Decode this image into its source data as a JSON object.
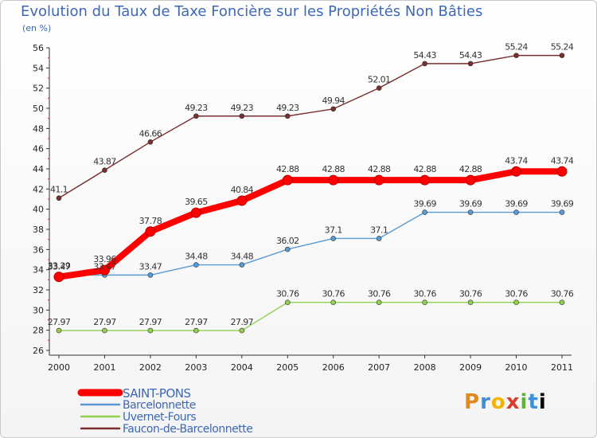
{
  "chart_data": {
    "type": "line",
    "title": "Evolution du Taux de Taxe Foncière sur les Propriétés Non Bâties",
    "ylabel": "(en %)",
    "xlabel": "",
    "categories": [
      "2000",
      "2001",
      "2002",
      "2003",
      "2004",
      "2005",
      "2006",
      "2007",
      "2008",
      "2009",
      "2010",
      "2011"
    ],
    "ylim": [
      26,
      56
    ],
    "yticks": [
      26,
      28,
      30,
      32,
      34,
      36,
      38,
      40,
      42,
      44,
      46,
      48,
      50,
      52,
      54,
      56
    ],
    "grid": false,
    "legend_position": "bottom-left",
    "series": [
      {
        "name": "SAINT-PONS",
        "color": "#ff0000",
        "values": [
          33.29,
          33.96,
          37.78,
          39.65,
          40.84,
          42.88,
          42.88,
          42.88,
          42.88,
          42.88,
          43.74,
          43.74
        ],
        "labels": [
          "33.29",
          "33.96",
          "37.78",
          "39.65",
          "40.84",
          "42.88",
          "42.88",
          "42.88",
          "42.88",
          "42.88",
          "43.74",
          "43.74"
        ]
      },
      {
        "name": "Barcelonnette",
        "color": "#5b9bd5",
        "values": [
          33.47,
          33.47,
          33.47,
          34.48,
          34.48,
          36.02,
          37.1,
          37.1,
          39.69,
          39.69,
          39.69,
          39.69
        ],
        "labels": [
          "33.47",
          "33.47",
          "33.47",
          "34.48",
          "34.48",
          "36.02",
          "37.1",
          "37.1",
          "39.69",
          "39.69",
          "39.69",
          "39.69"
        ]
      },
      {
        "name": "Uvernet-Fours",
        "color": "#92d050",
        "values": [
          27.97,
          27.97,
          27.97,
          27.97,
          27.97,
          30.76,
          30.76,
          30.76,
          30.76,
          30.76,
          30.76,
          30.76
        ],
        "labels": [
          "27.97",
          "27.97",
          "27.97",
          "27.97",
          "27.97",
          "30.76",
          "30.76",
          "30.76",
          "30.76",
          "30.76",
          "30.76",
          "30.76"
        ]
      },
      {
        "name": "Faucon-de-Barcelonnette",
        "color": "#7b2e2e",
        "values": [
          41.1,
          43.87,
          46.66,
          49.23,
          49.23,
          49.23,
          49.94,
          52.01,
          54.43,
          54.43,
          55.24,
          55.24
        ],
        "labels": [
          "41.1",
          "43.87",
          "46.66",
          "49.23",
          "49.23",
          "49.23",
          "49.94",
          "52.01",
          "54.43",
          "54.43",
          "55.24",
          "55.24"
        ]
      }
    ]
  },
  "logo": {
    "letters": [
      "P",
      "r",
      "o",
      "x",
      "i",
      "t",
      "i"
    ]
  }
}
